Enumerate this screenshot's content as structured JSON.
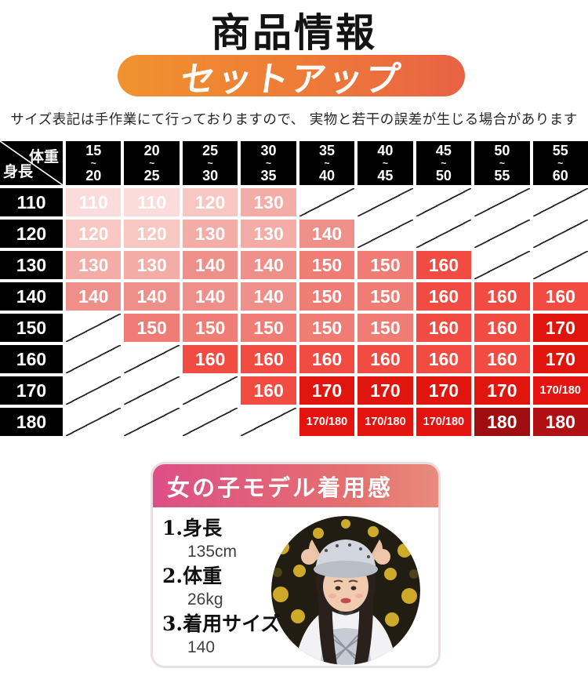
{
  "page": {
    "title": "商品情報",
    "banner": "セットアップ",
    "disclaimer": "サイズ表記は手作業にて行っておりますので、 実物と若干の誤差が生じる場合があります"
  },
  "colors": {
    "banner_gradient_left": "#f0922e",
    "banner_gradient_right": "#e96245",
    "table_header_bg": "#000000",
    "card_border": "#e9dee1",
    "card_header_gradient_left": "#dd4f86",
    "card_header_gradient_right": "#e98b7d"
  },
  "size_table": {
    "corner": {
      "weight_label": "体重",
      "height_label": "身長"
    },
    "weight_ranges": [
      {
        "from": "15",
        "tilde": "~",
        "to": "20"
      },
      {
        "from": "20",
        "tilde": "~",
        "to": "25"
      },
      {
        "from": "25",
        "tilde": "~",
        "to": "30"
      },
      {
        "from": "30",
        "tilde": "~",
        "to": "35"
      },
      {
        "from": "35",
        "tilde": "~",
        "to": "40"
      },
      {
        "from": "40",
        "tilde": "~",
        "to": "45"
      },
      {
        "from": "45",
        "tilde": "~",
        "to": "50"
      },
      {
        "from": "50",
        "tilde": "~",
        "to": "55"
      },
      {
        "from": "55",
        "tilde": "~",
        "to": "60"
      }
    ],
    "rows": [
      {
        "height": "110",
        "cells": [
          {
            "v": "110",
            "bg": "#fbdcda"
          },
          {
            "v": "110",
            "bg": "#fbdcda"
          },
          {
            "v": "120",
            "bg": "#f8c7c2"
          },
          {
            "v": "130",
            "bg": "#f4aca6"
          },
          null,
          null,
          null,
          null,
          null
        ]
      },
      {
        "height": "120",
        "cells": [
          {
            "v": "120",
            "bg": "#f8c7c2"
          },
          {
            "v": "120",
            "bg": "#f8c7c2"
          },
          {
            "v": "130",
            "bg": "#f4aca6"
          },
          {
            "v": "130",
            "bg": "#f4aca6"
          },
          {
            "v": "140",
            "bg": "#ee9089"
          },
          null,
          null,
          null,
          null
        ]
      },
      {
        "height": "130",
        "cells": [
          {
            "v": "130",
            "bg": "#f4aca6"
          },
          {
            "v": "130",
            "bg": "#f4aca6"
          },
          {
            "v": "140",
            "bg": "#ee9089"
          },
          {
            "v": "140",
            "bg": "#ee9089"
          },
          {
            "v": "150",
            "bg": "#f07d75"
          },
          {
            "v": "150",
            "bg": "#f07d75"
          },
          {
            "v": "160",
            "bg": "#f24c42"
          },
          null,
          null
        ]
      },
      {
        "height": "140",
        "cells": [
          {
            "v": "140",
            "bg": "#ee9089"
          },
          {
            "v": "140",
            "bg": "#ee9089"
          },
          {
            "v": "140",
            "bg": "#ee9089"
          },
          {
            "v": "140",
            "bg": "#ee9089"
          },
          {
            "v": "150",
            "bg": "#f07d75"
          },
          {
            "v": "150",
            "bg": "#f07d75"
          },
          {
            "v": "160",
            "bg": "#f24c42"
          },
          {
            "v": "160",
            "bg": "#f24c42"
          },
          {
            "v": "160",
            "bg": "#f24c42"
          }
        ]
      },
      {
        "height": "150",
        "cells": [
          null,
          {
            "v": "150",
            "bg": "#f07d75"
          },
          {
            "v": "150",
            "bg": "#f07d75"
          },
          {
            "v": "150",
            "bg": "#f07d75"
          },
          {
            "v": "150",
            "bg": "#f07d75"
          },
          {
            "v": "150",
            "bg": "#f07d75"
          },
          {
            "v": "160",
            "bg": "#f24c42"
          },
          {
            "v": "160",
            "bg": "#f24c42"
          },
          {
            "v": "170",
            "bg": "#e0150e"
          }
        ]
      },
      {
        "height": "160",
        "cells": [
          null,
          null,
          {
            "v": "160",
            "bg": "#f24c42"
          },
          {
            "v": "160",
            "bg": "#f24c42"
          },
          {
            "v": "160",
            "bg": "#f24c42"
          },
          {
            "v": "160",
            "bg": "#f24c42"
          },
          {
            "v": "160",
            "bg": "#f24c42"
          },
          {
            "v": "160",
            "bg": "#f24c42"
          },
          {
            "v": "170",
            "bg": "#e0150e"
          }
        ]
      },
      {
        "height": "170",
        "cells": [
          null,
          null,
          null,
          {
            "v": "160",
            "bg": "#f24c42"
          },
          {
            "v": "170",
            "bg": "#e0150e"
          },
          {
            "v": "170",
            "bg": "#e0150e"
          },
          {
            "v": "170",
            "bg": "#e0150e"
          },
          {
            "v": "170",
            "bg": "#e0150e"
          },
          {
            "v": "170/180",
            "bg": "#e3140f"
          }
        ]
      },
      {
        "height": "180",
        "cells": [
          null,
          null,
          null,
          null,
          {
            "v": "170/180",
            "bg": "#e3140f"
          },
          {
            "v": "170/180",
            "bg": "#e3140f"
          },
          {
            "v": "170/180",
            "bg": "#e3140f"
          },
          {
            "v": "180",
            "bg": "#9e0d10"
          },
          {
            "v": "180",
            "bg": "#b01014"
          }
        ]
      }
    ]
  },
  "model_card": {
    "header": "女の子モデル着用感",
    "specs": [
      {
        "label": "1.身長",
        "value": "135cm"
      },
      {
        "label": "2.体重",
        "value": "26kg"
      },
      {
        "label": "3.着用サイズ",
        "value": "140"
      }
    ],
    "photo": "girl-model-photo"
  }
}
